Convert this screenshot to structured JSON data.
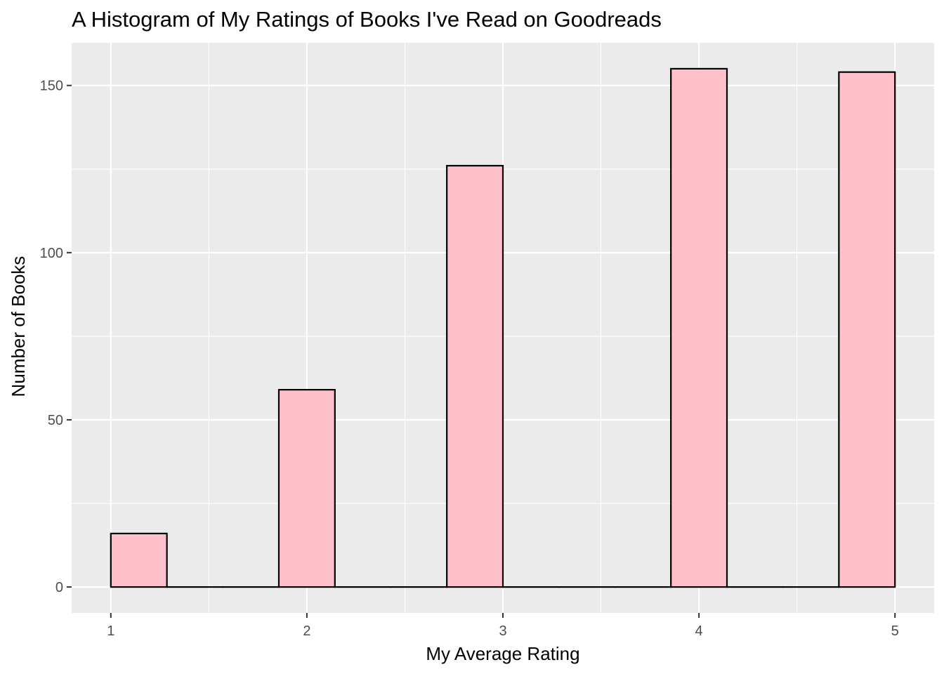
{
  "chart_data": {
    "type": "bar",
    "title": "A Histogram of My Ratings of Books I've Read on Goodreads",
    "xlabel": "My Average Rating",
    "ylabel": "Number of Books",
    "bins": [
      {
        "x_start": 1.0,
        "x_end": 1.286,
        "count": 16
      },
      {
        "x_start": 1.286,
        "x_end": 1.571,
        "count": 0
      },
      {
        "x_start": 1.571,
        "x_end": 1.857,
        "count": 0
      },
      {
        "x_start": 1.857,
        "x_end": 2.143,
        "count": 59
      },
      {
        "x_start": 2.143,
        "x_end": 2.429,
        "count": 0
      },
      {
        "x_start": 2.429,
        "x_end": 2.714,
        "count": 0
      },
      {
        "x_start": 2.714,
        "x_end": 3.0,
        "count": 126
      },
      {
        "x_start": 3.0,
        "x_end": 3.286,
        "count": 0
      },
      {
        "x_start": 3.286,
        "x_end": 3.571,
        "count": 0
      },
      {
        "x_start": 3.571,
        "x_end": 3.857,
        "count": 0
      },
      {
        "x_start": 3.857,
        "x_end": 4.143,
        "count": 155
      },
      {
        "x_start": 4.143,
        "x_end": 4.429,
        "count": 0
      },
      {
        "x_start": 4.429,
        "x_end": 4.714,
        "count": 0
      },
      {
        "x_start": 4.714,
        "x_end": 5.0,
        "count": 154
      }
    ],
    "x_ticks": [
      1,
      2,
      3,
      4,
      5
    ],
    "y_ticks": [
      0,
      50,
      100,
      150
    ],
    "xlim": [
      0.8,
      5.2
    ],
    "ylim": [
      -7.75,
      162.75
    ],
    "grid": true,
    "colors": {
      "bar_fill": "#FFC0CB",
      "bar_stroke": "#000000",
      "panel_background": "#EBEBEB",
      "grid": "#FFFFFF"
    }
  }
}
